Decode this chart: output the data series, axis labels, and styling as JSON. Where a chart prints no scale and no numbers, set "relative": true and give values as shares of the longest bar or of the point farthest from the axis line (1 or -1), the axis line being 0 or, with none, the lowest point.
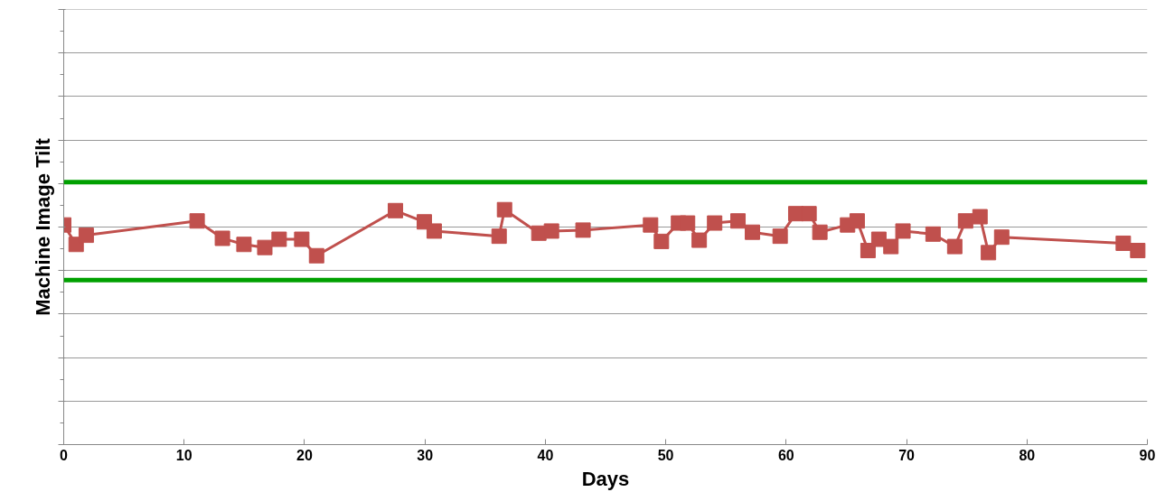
{
  "chart_data": {
    "type": "line",
    "xlabel": "Days",
    "ylabel": "Machine Image Tilt",
    "relative": true,
    "xlim": [
      0,
      90
    ],
    "xticks": [
      0,
      10,
      20,
      30,
      40,
      50,
      60,
      70,
      80,
      90
    ],
    "grid": "y",
    "tick_labels": "x",
    "marker": "square",
    "line_style": "solid",
    "series": [
      {
        "color": "#c0504d",
        "x": [
          0,
          1.03,
          1.87,
          11.08,
          13.18,
          14.97,
          16.7,
          17.89,
          19.77,
          21.0,
          27.55,
          29.95,
          30.77,
          36.16,
          36.61,
          39.46,
          40.51,
          43.13,
          48.74,
          49.64,
          51.06,
          51.81,
          52.78,
          54.06,
          56.0,
          57.2,
          59.5,
          60.8,
          61.9,
          62.8,
          65.1,
          65.9,
          66.8,
          67.7,
          68.7,
          69.7,
          72.2,
          74.0,
          74.9,
          76.1,
          76.8,
          77.9,
          88.0,
          89.2
        ],
        "values": [
          0.935,
          0.852,
          0.891,
          0.952,
          0.878,
          0.852,
          0.839,
          0.874,
          0.874,
          0.804,
          0.996,
          0.948,
          0.909,
          0.887,
          1.0,
          0.9,
          0.909,
          0.913,
          0.935,
          0.865,
          0.943,
          0.943,
          0.87,
          0.943,
          0.952,
          0.904,
          0.887,
          0.983,
          0.983,
          0.904,
          0.935,
          0.952,
          0.826,
          0.874,
          0.843,
          0.909,
          0.896,
          0.843,
          0.952,
          0.97,
          0.817,
          0.883,
          0.857,
          0.826
        ]
      }
    ],
    "ref_lines": [
      {
        "axis": "y",
        "value": 1.117,
        "color": "#00a000"
      },
      {
        "axis": "y",
        "value": 0.7,
        "color": "#00a000"
      }
    ]
  }
}
